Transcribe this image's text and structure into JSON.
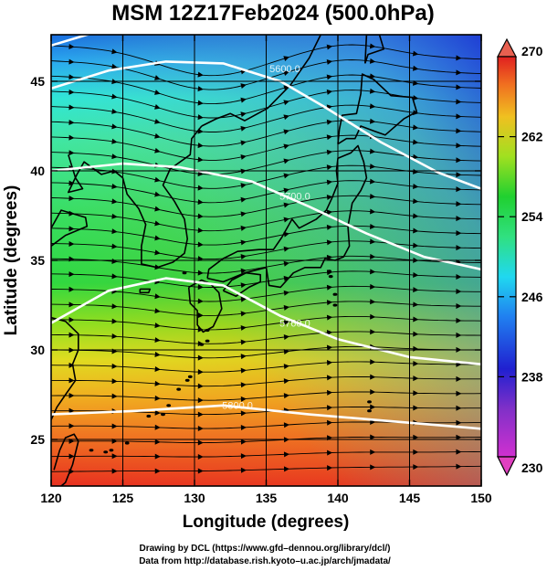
{
  "title": "MSM 12Z17Feb2024 (500.0hPa)",
  "xlabel": "Longitude (degrees)",
  "ylabel": "Latitude  (degrees)",
  "credits": [
    "Drawing by DCL (https://www.gfd–dennou.org/library/dcl/)",
    "Data from http://database.rish.kyoto–u.ac.jp/arch/jmadata/"
  ],
  "chart_data": {
    "type": "heatmap",
    "title": "MSM 12Z17Feb2024 (500.0hPa)",
    "xlabel": "Longitude (degrees)",
    "ylabel": "Latitude  (degrees)",
    "xlim": [
      120,
      150
    ],
    "ylim": [
      22.4,
      47.6
    ],
    "x_ticks": [
      120,
      125,
      130,
      135,
      140,
      145,
      150
    ],
    "y_ticks": [
      25,
      30,
      35,
      40,
      45
    ],
    "grid": true,
    "colorbar": {
      "min": 230,
      "max": 270,
      "ticks": [
        230,
        238,
        246,
        254,
        262,
        270
      ],
      "position": "right",
      "extend": "both",
      "colors": [
        "#e040c0",
        "#9030c8",
        "#2020c8",
        "#2f8ff0",
        "#20e0e8",
        "#30e070",
        "#20d030",
        "#a0e020",
        "#f0d020",
        "#f07020",
        "#e02020"
      ]
    },
    "contours": {
      "color": "#ffffff",
      "labels": [
        "5600.0",
        "5700.0",
        "5760.0",
        "5800.0"
      ]
    },
    "overlays": [
      "streamlines (wind)",
      "coastlines"
    ]
  }
}
